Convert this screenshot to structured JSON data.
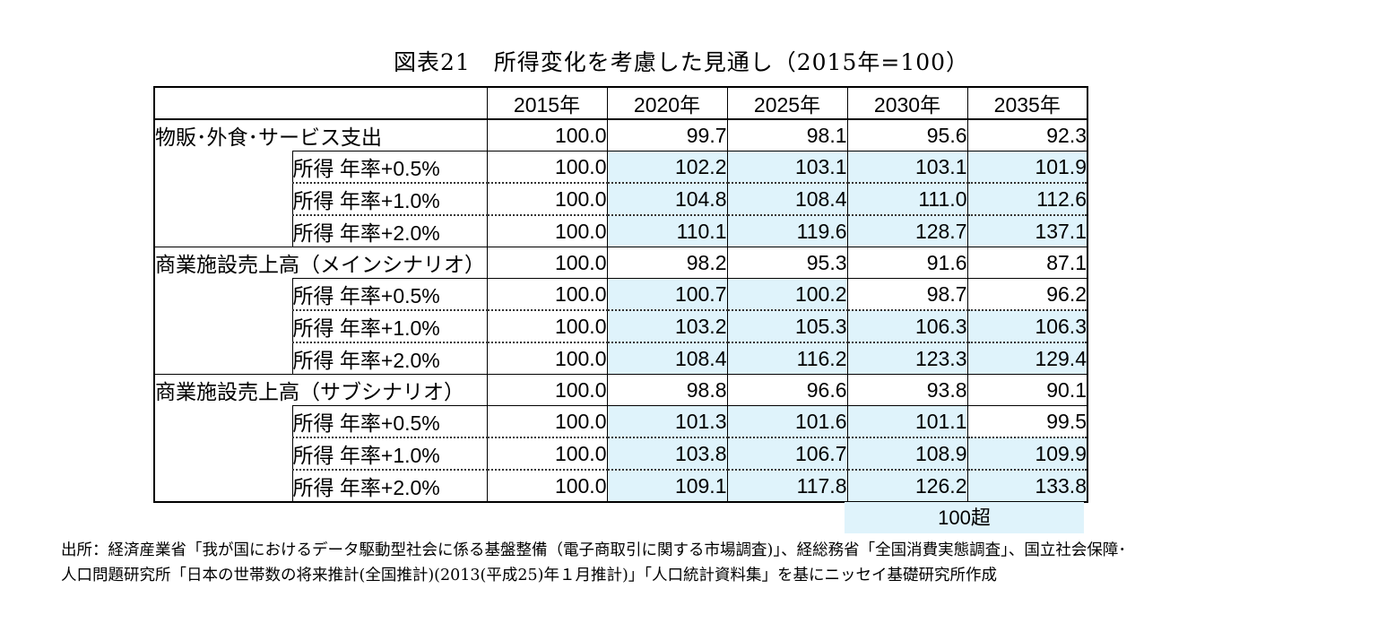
{
  "title": "図表21　所得変化を考慮した見通し（2015年=100）",
  "chart_data": {
    "type": "table",
    "title": "図表21　所得変化を考慮した見通し（2015年=100）",
    "columns": [
      "2015年",
      "2020年",
      "2025年",
      "2030年",
      "2035年"
    ],
    "groups": [
      {
        "label": "物販･外食･サービス支出",
        "values": [
          "100.0",
          "99.7",
          "98.1",
          "95.6",
          "92.3"
        ],
        "rows": [
          {
            "label": "所得 年率+0.5%",
            "values": [
              "100.0",
              "102.2",
              "103.1",
              "103.1",
              "101.9"
            ]
          },
          {
            "label": "所得 年率+1.0%",
            "values": [
              "100.0",
              "104.8",
              "108.4",
              "111.0",
              "112.6"
            ]
          },
          {
            "label": "所得 年率+2.0%",
            "values": [
              "100.0",
              "110.1",
              "119.6",
              "128.7",
              "137.1"
            ]
          }
        ]
      },
      {
        "label": "商業施設売上高（メインシナリオ）",
        "values": [
          "100.0",
          "98.2",
          "95.3",
          "91.6",
          "87.1"
        ],
        "rows": [
          {
            "label": "所得 年率+0.5%",
            "values": [
              "100.0",
              "100.7",
              "100.2",
              "98.7",
              "96.2"
            ]
          },
          {
            "label": "所得 年率+1.0%",
            "values": [
              "100.0",
              "103.2",
              "105.3",
              "106.3",
              "106.3"
            ]
          },
          {
            "label": "所得 年率+2.0%",
            "values": [
              "100.0",
              "108.4",
              "116.2",
              "123.3",
              "129.4"
            ]
          }
        ]
      },
      {
        "label": "商業施設売上高（サブシナリオ）",
        "values": [
          "100.0",
          "98.8",
          "96.6",
          "93.8",
          "90.1"
        ],
        "rows": [
          {
            "label": "所得 年率+0.5%",
            "values": [
              "100.0",
              "101.3",
              "101.6",
              "101.1",
              "99.5"
            ]
          },
          {
            "label": "所得 年率+1.0%",
            "values": [
              "100.0",
              "103.8",
              "106.7",
              "108.9",
              "109.9"
            ]
          },
          {
            "label": "所得 年率+2.0%",
            "values": [
              "100.0",
              "109.1",
              "117.8",
              "126.2",
              "133.8"
            ]
          }
        ]
      }
    ],
    "highlight": {
      "label": "100超",
      "color": "#dff3fb",
      "rule": "value > 100"
    }
  },
  "source": [
    "出所：経済産業省「我が国におけるデータ駆動型社会に係る基盤整備（電子商取引に関する市場調査)」、経総務省「全国消費実態調査」、国立社会保障･",
    "人口問題研究所「日本の世帯数の将来推計(全国推計)(2013(平成25)年１月推計)」「人口統計資料集」を基にニッセイ基礎研究所作成"
  ]
}
